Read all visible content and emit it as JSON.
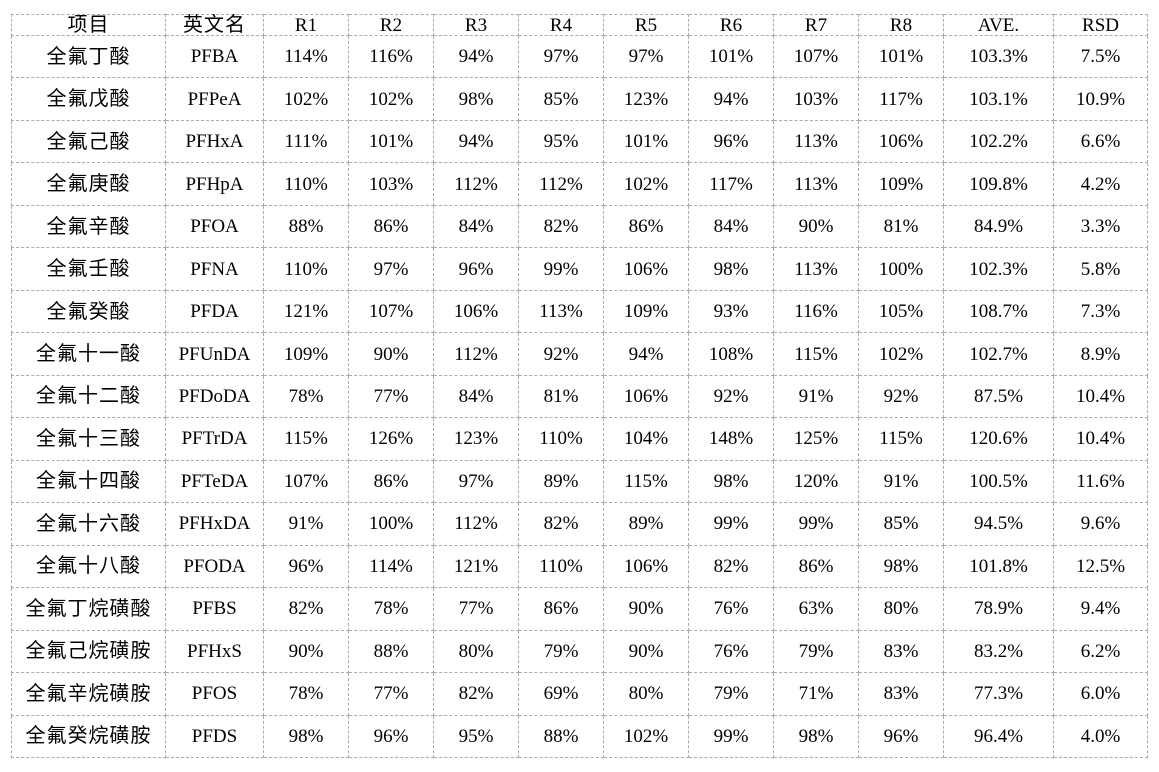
{
  "style": {
    "background": "#ffffff",
    "text_color": "#000000",
    "grid_border_color": "#ababab",
    "grid_border_style": "dashed"
  },
  "table": {
    "columns": [
      "项目",
      "英文名",
      "R1",
      "R2",
      "R3",
      "R4",
      "R5",
      "R6",
      "R7",
      "R8",
      "AVE.",
      "RSD"
    ],
    "rows": [
      [
        "全氟丁酸",
        "PFBA",
        "114%",
        "116%",
        "94%",
        "97%",
        "97%",
        "101%",
        "107%",
        "101%",
        "103.3%",
        "7.5%"
      ],
      [
        "全氟戊酸",
        "PFPeA",
        "102%",
        "102%",
        "98%",
        "85%",
        "123%",
        "94%",
        "103%",
        "117%",
        "103.1%",
        "10.9%"
      ],
      [
        "全氟己酸",
        "PFHxA",
        "111%",
        "101%",
        "94%",
        "95%",
        "101%",
        "96%",
        "113%",
        "106%",
        "102.2%",
        "6.6%"
      ],
      [
        "全氟庚酸",
        "PFHpA",
        "110%",
        "103%",
        "112%",
        "112%",
        "102%",
        "117%",
        "113%",
        "109%",
        "109.8%",
        "4.2%"
      ],
      [
        "全氟辛酸",
        "PFOA",
        "88%",
        "86%",
        "84%",
        "82%",
        "86%",
        "84%",
        "90%",
        "81%",
        "84.9%",
        "3.3%"
      ],
      [
        "全氟壬酸",
        "PFNA",
        "110%",
        "97%",
        "96%",
        "99%",
        "106%",
        "98%",
        "113%",
        "100%",
        "102.3%",
        "5.8%"
      ],
      [
        "全氟癸酸",
        "PFDA",
        "121%",
        "107%",
        "106%",
        "113%",
        "109%",
        "93%",
        "116%",
        "105%",
        "108.7%",
        "7.3%"
      ],
      [
        "全氟十一酸",
        "PFUnDA",
        "109%",
        "90%",
        "112%",
        "92%",
        "94%",
        "108%",
        "115%",
        "102%",
        "102.7%",
        "8.9%"
      ],
      [
        "全氟十二酸",
        "PFDoDA",
        "78%",
        "77%",
        "84%",
        "81%",
        "106%",
        "92%",
        "91%",
        "92%",
        "87.5%",
        "10.4%"
      ],
      [
        "全氟十三酸",
        "PFTrDA",
        "115%",
        "126%",
        "123%",
        "110%",
        "104%",
        "148%",
        "125%",
        "115%",
        "120.6%",
        "10.4%"
      ],
      [
        "全氟十四酸",
        "PFTeDA",
        "107%",
        "86%",
        "97%",
        "89%",
        "115%",
        "98%",
        "120%",
        "91%",
        "100.5%",
        "11.6%"
      ],
      [
        "全氟十六酸",
        "PFHxDA",
        "91%",
        "100%",
        "112%",
        "82%",
        "89%",
        "99%",
        "99%",
        "85%",
        "94.5%",
        "9.6%"
      ],
      [
        "全氟十八酸",
        "PFODA",
        "96%",
        "114%",
        "121%",
        "110%",
        "106%",
        "82%",
        "86%",
        "98%",
        "101.8%",
        "12.5%"
      ],
      [
        "全氟丁烷磺酸",
        "PFBS",
        "82%",
        "78%",
        "77%",
        "86%",
        "90%",
        "76%",
        "63%",
        "80%",
        "78.9%",
        "9.4%"
      ],
      [
        "全氟己烷磺胺",
        "PFHxS",
        "90%",
        "88%",
        "80%",
        "79%",
        "90%",
        "76%",
        "79%",
        "83%",
        "83.2%",
        "6.2%"
      ],
      [
        "全氟辛烷磺胺",
        "PFOS",
        "78%",
        "77%",
        "82%",
        "69%",
        "80%",
        "79%",
        "71%",
        "83%",
        "77.3%",
        "6.0%"
      ],
      [
        "全氟癸烷磺胺",
        "PFDS",
        "98%",
        "96%",
        "95%",
        "88%",
        "102%",
        "99%",
        "98%",
        "96%",
        "96.4%",
        "4.0%"
      ]
    ]
  }
}
